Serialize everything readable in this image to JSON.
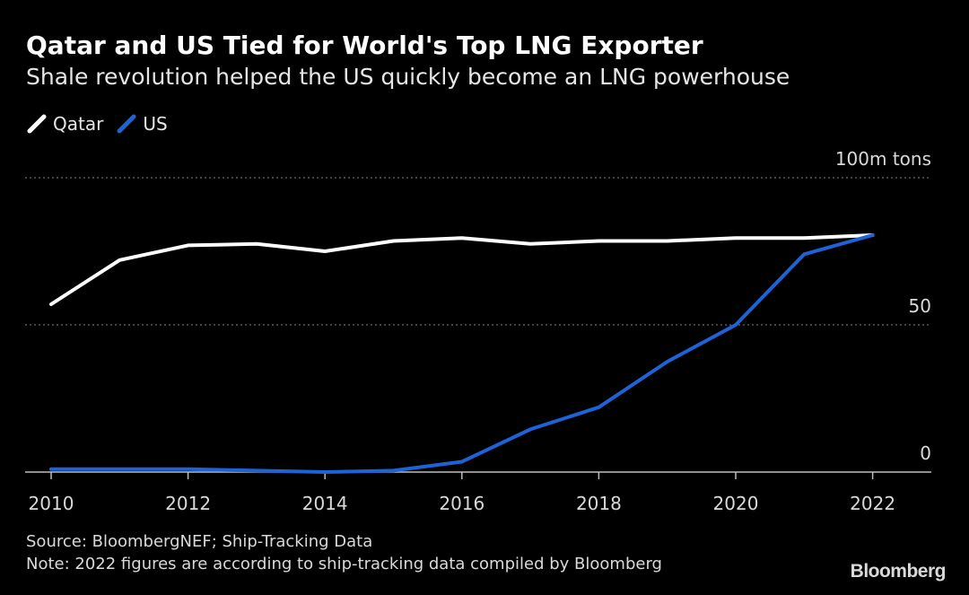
{
  "title": "Qatar and US Tied for World's Top LNG Exporter",
  "subtitle": "Shale revolution helped the US quickly become an LNG powerhouse",
  "legend": [
    {
      "label": "Qatar",
      "color": "#ffffff"
    },
    {
      "label": "US",
      "color": "#1e62d8"
    }
  ],
  "source": "Source: BloombergNEF; Ship-Tracking Data",
  "note": "Note: 2022 figures are according to ship-tracking data compiled by Bloomberg",
  "brand": "Bloomberg",
  "chart_data": {
    "type": "line",
    "title": "Qatar and US Tied for World's Top LNG Exporter",
    "subtitle": "Shale revolution helped the US quickly become an LNG powerhouse",
    "xlabel": "",
    "ylabel": "m tons",
    "x": [
      2010,
      2011,
      2012,
      2013,
      2014,
      2015,
      2016,
      2017,
      2018,
      2019,
      2020,
      2021,
      2022
    ],
    "xlim": [
      2010,
      2023
    ],
    "ylim": [
      0,
      100
    ],
    "x_ticks": [
      2010,
      2012,
      2014,
      2016,
      2018,
      2020,
      2022
    ],
    "y_ticks": [
      {
        "value": 0,
        "label": "0"
      },
      {
        "value": 50,
        "label": "50"
      },
      {
        "value": 100,
        "label": "100m tons"
      }
    ],
    "grid": true,
    "legend_position": "top-left",
    "series": [
      {
        "name": "Qatar",
        "color": "#ffffff",
        "values": [
          57,
          72,
          77,
          77.5,
          75,
          78.5,
          79.5,
          77.5,
          78.5,
          78.5,
          79.5,
          79.5,
          80.5
        ]
      },
      {
        "name": "US",
        "color": "#1e62d8",
        "values": [
          1,
          1,
          1,
          0.5,
          0,
          0.5,
          3.5,
          14.5,
          22,
          37.5,
          50,
          74,
          80.5
        ]
      }
    ]
  }
}
